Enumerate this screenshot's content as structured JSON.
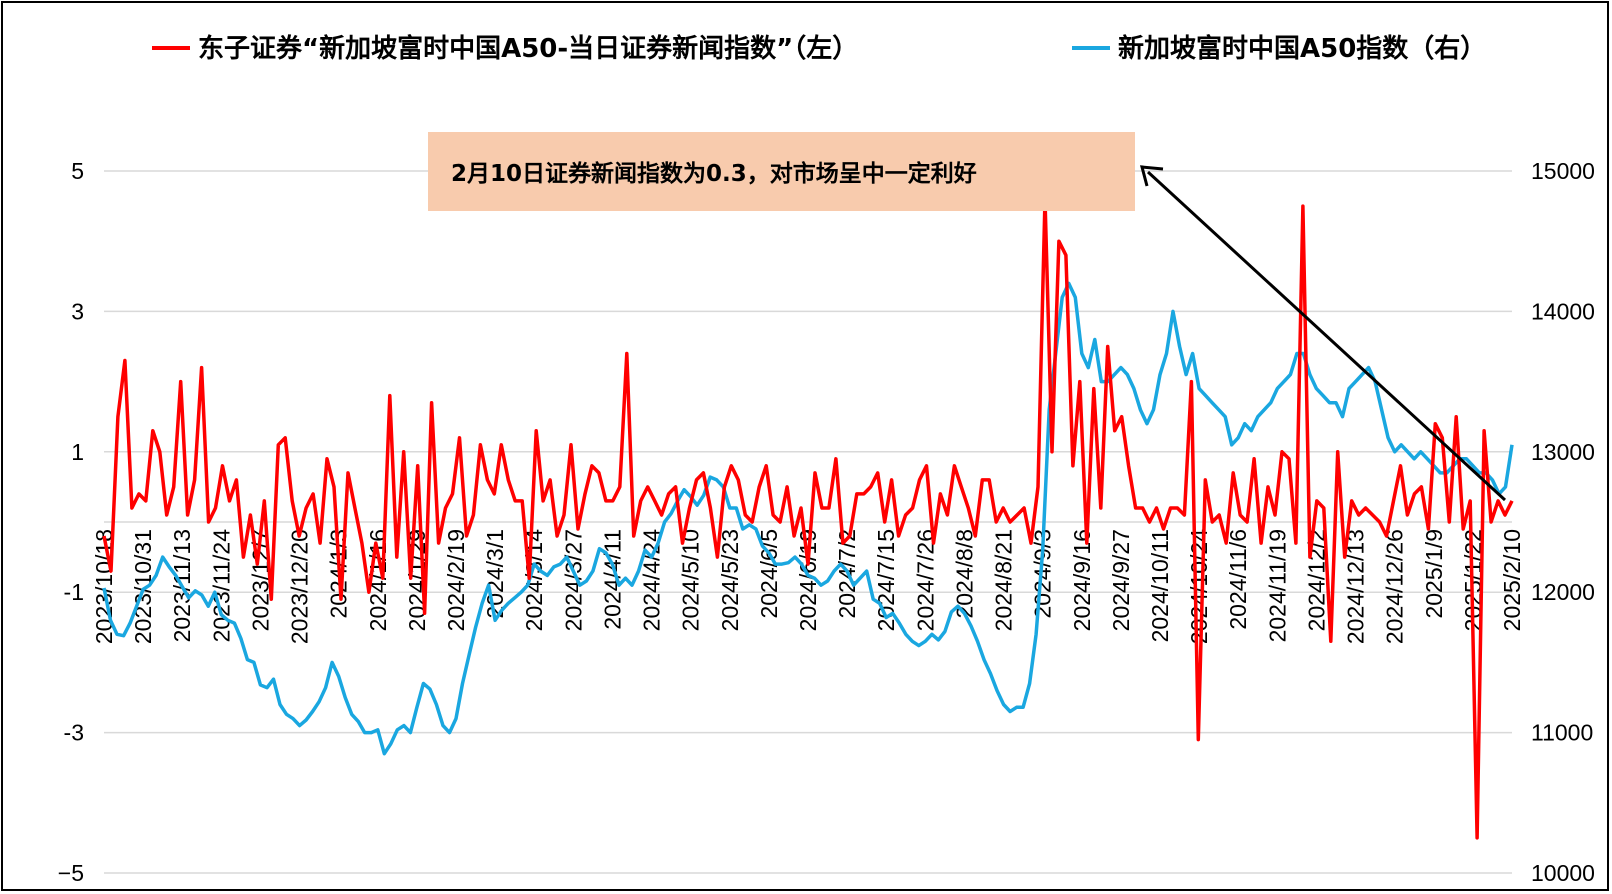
{
  "chart_data": {
    "type": "line",
    "legend": {
      "red_label": "东子证券“新加坡富时中国A50-当日证券新闻指数”（左）",
      "blue_label": "新加坡富时中国A50指数（右）",
      "placement": "top"
    },
    "annotation": {
      "text": "2月10日证券新闻指数为0.3，对市场呈中一定利好",
      "fill": "#f8cbad",
      "target": {
        "x": "2025/2/10",
        "value_left": 0.3
      }
    },
    "colors": {
      "red": "#ff0000",
      "blue": "#1aa7e0"
    },
    "y_left": {
      "ticks": [
        "5",
        "3",
        "1",
        "-1",
        "-3",
        "−5"
      ],
      "range": [
        -5,
        5
      ]
    },
    "y_right": {
      "ticks": [
        "15000",
        "14000",
        "13000",
        "12000",
        "11000",
        "10000"
      ],
      "range": [
        10000,
        15000
      ]
    },
    "x_ticks": [
      "2023/10/18",
      "2023/10/31",
      "2023/11/13",
      "2023/11/24",
      "2023/12/7",
      "2023/12/20",
      "2024/1/3",
      "2024/1/16",
      "2024/1/29",
      "2024/2/19",
      "2024/3/1",
      "2024/3/14",
      "2024/3/27",
      "2024/4/11",
      "2024/4/24",
      "2024/5/10",
      "2024/5/23",
      "2024/6/5",
      "2024/6/19",
      "2024/7/2",
      "2024/7/15",
      "2024/7/26",
      "2024/8/8",
      "2024/8/21",
      "2024/9/3",
      "2024/9/16",
      "2024/9/27",
      "2024/10/11",
      "2024/10/24",
      "2024/11/6",
      "2024/11/19",
      "2024/12/2",
      "2024/12/13",
      "2024/12/26",
      "2025/1/9",
      "2025/1/22",
      "2025/2/10"
    ],
    "series": [
      {
        "name": "东子证券“新加坡富时中国A50-当日证券新闻指数”（左）",
        "axis": "left",
        "values": [
          -0.2,
          -0.7,
          1.5,
          2.3,
          0.2,
          0.4,
          0.3,
          1.3,
          1.0,
          0.1,
          0.5,
          2.0,
          0.1,
          0.6,
          2.2,
          0.0,
          0.2,
          0.8,
          0.3,
          0.6,
          -0.5,
          0.1,
          -0.6,
          0.3,
          -1.1,
          1.1,
          1.2,
          0.3,
          -0.2,
          0.2,
          0.4,
          -0.3,
          0.9,
          0.5,
          -1.1,
          0.7,
          0.2,
          -0.3,
          -1.0,
          -0.3,
          -0.8,
          1.8,
          -0.5,
          1.0,
          -0.8,
          0.8,
          -1.3,
          1.7,
          -0.3,
          0.2,
          0.4,
          1.2,
          -0.2,
          0.1,
          1.1,
          0.6,
          0.4,
          1.1,
          0.6,
          0.3,
          0.3,
          -0.8,
          1.3,
          0.3,
          0.6,
          -0.2,
          0.1,
          1.1,
          -0.1,
          0.4,
          0.8,
          0.7,
          0.3,
          0.3,
          0.5,
          2.4,
          -0.2,
          0.3,
          0.5,
          0.3,
          0.1,
          0.4,
          0.5,
          -0.3,
          0.2,
          0.6,
          0.7,
          0.2,
          -0.5,
          0.5,
          0.8,
          0.6,
          0.1,
          0.0,
          0.5,
          0.8,
          0.1,
          0.0,
          0.5,
          -0.2,
          0.2,
          -0.6,
          0.7,
          0.2,
          0.2,
          0.9,
          -0.3,
          -0.2,
          0.4,
          0.4,
          0.5,
          0.7,
          0.0,
          0.6,
          -0.2,
          0.1,
          0.2,
          0.6,
          0.8,
          -0.3,
          0.4,
          0.1,
          0.8,
          0.5,
          0.2,
          -0.2,
          0.6,
          0.6,
          0.0,
          0.2,
          0.0,
          0.1,
          0.2,
          -0.3,
          0.5,
          4.6,
          1.0,
          4.0,
          3.8,
          0.8,
          2.0,
          -0.3,
          1.9,
          0.2,
          2.5,
          1.3,
          1.5,
          0.8,
          0.2,
          0.2,
          0.0,
          0.2,
          -0.1,
          0.2,
          0.2,
          0.1,
          2.0,
          -3.1,
          0.6,
          0.0,
          0.1,
          -0.3,
          0.7,
          0.1,
          0.0,
          0.9,
          -0.3,
          0.5,
          0.1,
          1.0,
          0.9,
          -0.3,
          4.5,
          -0.5,
          0.3,
          0.2,
          -1.7,
          1.0,
          -0.5,
          0.3,
          0.1,
          0.2,
          0.1,
          0.0,
          -0.2,
          0.3,
          0.8,
          0.1,
          0.4,
          0.5,
          -0.1,
          1.4,
          1.2,
          0.0,
          1.5,
          -0.1,
          0.3,
          -4.5,
          1.3,
          0.0,
          0.3,
          0.1,
          0.3
        ]
      },
      {
        "name": "新加坡富时中国A50指数（右）",
        "axis": "right",
        "values": [
          12030,
          11800,
          11700,
          11690,
          11780,
          11900,
          12020,
          12050,
          12120,
          12250,
          12180,
          12120,
          12040,
          11960,
          12010,
          11980,
          11900,
          12000,
          11840,
          11800,
          11780,
          11670,
          11520,
          11500,
          11340,
          11320,
          11380,
          11200,
          11130,
          11100,
          11050,
          11090,
          11150,
          11220,
          11320,
          11500,
          11400,
          11250,
          11130,
          11080,
          11000,
          11000,
          11020,
          10850,
          10920,
          11020,
          11050,
          11000,
          11180,
          11350,
          11310,
          11200,
          11050,
          11000,
          11100,
          11350,
          11550,
          11750,
          11920,
          12050,
          11800,
          11870,
          11920,
          11960,
          12000,
          12050,
          12200,
          12150,
          12120,
          12180,
          12200,
          12250,
          12150,
          12050,
          12080,
          12150,
          12310,
          12280,
          12200,
          12050,
          12100,
          12050,
          12150,
          12300,
          12250,
          12350,
          12500,
          12560,
          12650,
          12730,
          12680,
          12620,
          12690,
          12820,
          12800,
          12750,
          12600,
          12600,
          12450,
          12480,
          12450,
          12330,
          12280,
          12200,
          12200,
          12210,
          12250,
          12200,
          12120,
          12100,
          12050,
          12080,
          12150,
          12200,
          12150,
          12050,
          12100,
          12150,
          11950,
          11920,
          11820,
          11850,
          11780,
          11700,
          11650,
          11620,
          11650,
          11700,
          11660,
          11720,
          11860,
          11900,
          11850,
          11760,
          11650,
          11520,
          11420,
          11300,
          11200,
          11150,
          11180,
          11180,
          11350,
          11700,
          12300,
          13300,
          13700,
          14100,
          14200,
          14100,
          13700,
          13600,
          13800,
          13500,
          13500,
          13550,
          13600,
          13550,
          13450,
          13300,
          13200,
          13300,
          13550,
          13700,
          14000,
          13750,
          13550,
          13700,
          13450,
          13400,
          13350,
          13300,
          13250,
          13050,
          13100,
          13200,
          13150,
          13250,
          13300,
          13350,
          13450,
          13500,
          13550,
          13700,
          13700,
          13550,
          13450,
          13400,
          13350,
          13350,
          13250,
          13450,
          13500,
          13550,
          13600,
          13500,
          13300,
          13100,
          13000,
          13050,
          13000,
          12950,
          13000,
          12950,
          12900,
          12850,
          12850,
          12900,
          12950,
          12950,
          12900,
          12850,
          12850,
          12800,
          12700,
          12750,
          13050
        ]
      }
    ]
  }
}
